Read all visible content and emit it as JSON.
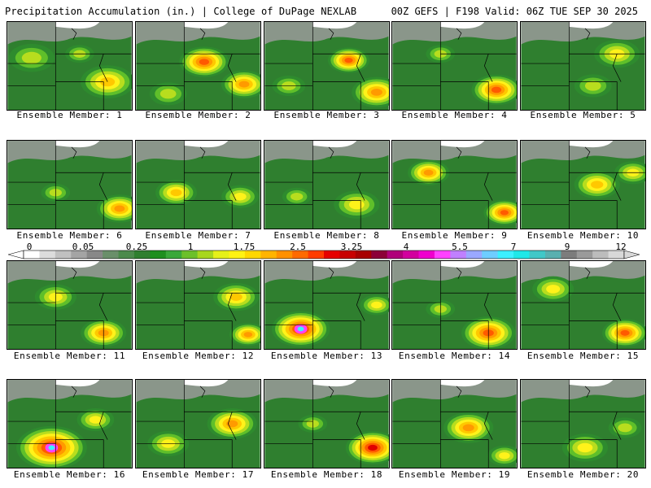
{
  "header": {
    "title": "Precipitation Accumulation (in.) | College of DuPage NEXLAB",
    "run_info": "00Z GEFS | F198 Valid: 06Z TUE SEP 30 2025"
  },
  "member_label_prefix": "Ensemble Member: ",
  "members": [
    {
      "number": 1,
      "label": "Ensemble Member: 1"
    },
    {
      "number": 2,
      "label": "Ensemble Member: 2"
    },
    {
      "number": 3,
      "label": "Ensemble Member: 3"
    },
    {
      "number": 4,
      "label": "Ensemble Member: 4"
    },
    {
      "number": 5,
      "label": "Ensemble Member: 5"
    },
    {
      "number": 6,
      "label": "Ensemble Member: 6"
    },
    {
      "number": 7,
      "label": "Ensemble Member: 7"
    },
    {
      "number": 8,
      "label": "Ensemble Member: 8"
    },
    {
      "number": 9,
      "label": "Ensemble Member: 9"
    },
    {
      "number": 10,
      "label": "Ensemble Member: 10"
    },
    {
      "number": 11,
      "label": "Ensemble Member: 11"
    },
    {
      "number": 12,
      "label": "Ensemble Member: 12"
    },
    {
      "number": 13,
      "label": "Ensemble Member: 13"
    },
    {
      "number": 14,
      "label": "Ensemble Member: 14"
    },
    {
      "number": 15,
      "label": "Ensemble Member: 15"
    },
    {
      "number": 16,
      "label": "Ensemble Member: 16"
    },
    {
      "number": 17,
      "label": "Ensemble Member: 17"
    },
    {
      "number": 18,
      "label": "Ensemble Member: 18"
    },
    {
      "number": 19,
      "label": "Ensemble Member: 19"
    },
    {
      "number": 20,
      "label": "Ensemble Member: 20"
    }
  ],
  "legend": {
    "units": "in.",
    "tick_labels": [
      "0",
      "0.05",
      "0.25",
      "1",
      "1.75",
      "2.5",
      "3.25",
      "4",
      "5.5",
      "7",
      "9",
      "12"
    ],
    "colors": [
      "#ffffff",
      "#dcdcdc",
      "#c0c0c0",
      "#a4a4a4",
      "#888888",
      "#6a8f6a",
      "#4c8a4c",
      "#2f7f2f",
      "#1f8f1f",
      "#3aa83a",
      "#6cc02a",
      "#a8d61e",
      "#e6f01a",
      "#fff214",
      "#ffd700",
      "#ffb400",
      "#ff9000",
      "#ff6a00",
      "#ff3c00",
      "#e60000",
      "#c80000",
      "#a80000",
      "#8c0038",
      "#b0007a",
      "#d2009e",
      "#ef00ce",
      "#ff40ff",
      "#c080ff",
      "#9aa8ff",
      "#6ecdff",
      "#3cf0ff",
      "#20e8e8",
      "#40c8c8",
      "#58b0b0",
      "#7c7c7c",
      "#9a9a9a",
      "#bcbcbc",
      "#d8d8d8"
    ]
  }
}
